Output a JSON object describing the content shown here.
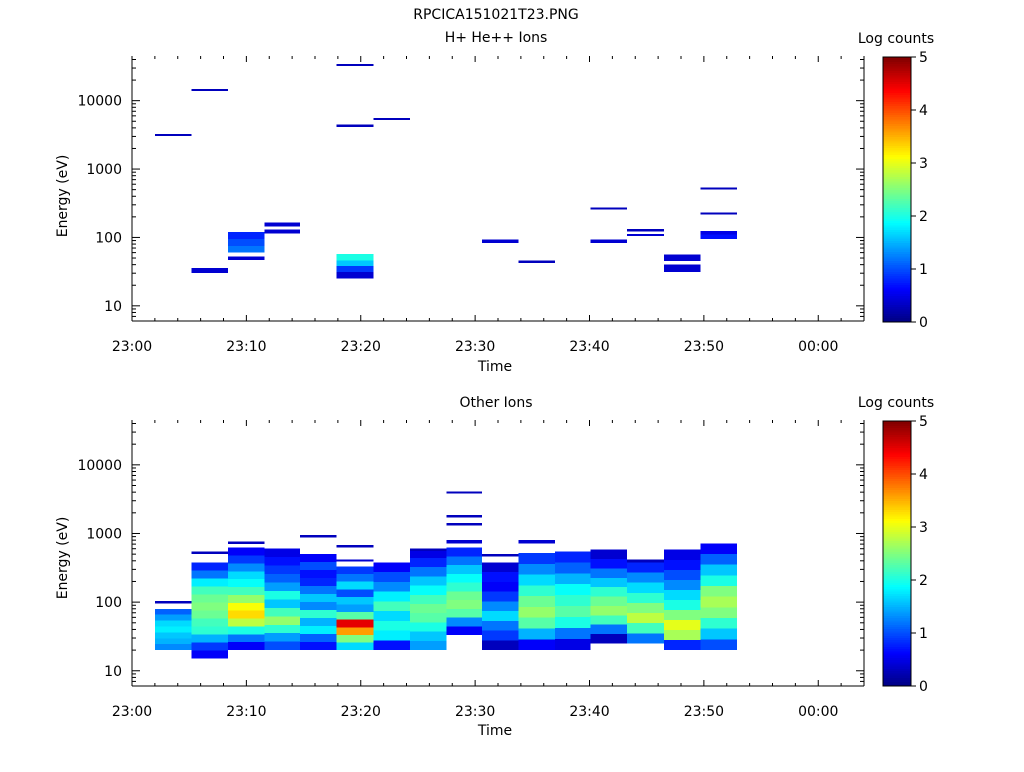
{
  "file_title": "RPCICA151021T23.PNG",
  "colors": {
    "axis": "#000000",
    "background": "#ffffff"
  },
  "chart_data": [
    {
      "type": "heatmap",
      "title": "H+ He++ Ions",
      "xlabel": "Time",
      "ylabel": "Energy (eV)",
      "x_ticks": [
        "23:00",
        "23:10",
        "23:20",
        "23:30",
        "23:40",
        "23:50",
        "00:00"
      ],
      "x_range_minutes": [
        0,
        64
      ],
      "y_ticks": [
        "10",
        "100",
        "1000",
        "10000"
      ],
      "ylim": [
        6,
        45000
      ],
      "yscale": "log",
      "colorbar": {
        "label": "Log counts",
        "ticks": [
          "0",
          "1",
          "2",
          "3",
          "4",
          "5"
        ],
        "range": [
          0,
          5
        ],
        "colormap": "jet"
      },
      "cells": [
        {
          "t0": 2.0,
          "t1": 5.2,
          "e0": 3050,
          "e1": 3250,
          "v": 0.3
        },
        {
          "t0": 5.2,
          "t1": 8.4,
          "e0": 13800,
          "e1": 14800,
          "v": 0.3
        },
        {
          "t0": 5.2,
          "t1": 8.4,
          "e0": 30,
          "e1": 36,
          "v": 0.4
        },
        {
          "t0": 8.4,
          "t1": 11.6,
          "e0": 47,
          "e1": 53,
          "v": 0.4
        },
        {
          "t0": 8.4,
          "t1": 11.6,
          "e0": 60,
          "e1": 75,
          "v": 1.2
        },
        {
          "t0": 8.4,
          "t1": 11.6,
          "e0": 75,
          "e1": 95,
          "v": 1.0
        },
        {
          "t0": 8.4,
          "t1": 11.6,
          "e0": 95,
          "e1": 120,
          "v": 0.8
        },
        {
          "t0": 11.6,
          "t1": 14.7,
          "e0": 115,
          "e1": 130,
          "v": 0.4
        },
        {
          "t0": 11.6,
          "t1": 14.7,
          "e0": 145,
          "e1": 165,
          "v": 0.4
        },
        {
          "t0": 17.9,
          "t1": 21.1,
          "e0": 25,
          "e1": 31,
          "v": 0.4
        },
        {
          "t0": 17.9,
          "t1": 21.1,
          "e0": 31,
          "e1": 38,
          "v": 0.9
        },
        {
          "t0": 17.9,
          "t1": 21.1,
          "e0": 38,
          "e1": 46,
          "v": 1.6
        },
        {
          "t0": 17.9,
          "t1": 21.1,
          "e0": 46,
          "e1": 57,
          "v": 2.0
        },
        {
          "t0": 17.9,
          "t1": 21.1,
          "e0": 4100,
          "e1": 4450,
          "v": 0.3
        },
        {
          "t0": 17.9,
          "t1": 21.1,
          "e0": 32000,
          "e1": 34500,
          "v": 0.3
        },
        {
          "t0": 21.1,
          "t1": 24.3,
          "e0": 5200,
          "e1": 5600,
          "v": 0.3
        },
        {
          "t0": 30.6,
          "t1": 33.8,
          "e0": 83,
          "e1": 93,
          "v": 0.4
        },
        {
          "t0": 33.8,
          "t1": 37.0,
          "e0": 42,
          "e1": 46,
          "v": 0.3
        },
        {
          "t0": 40.1,
          "t1": 43.3,
          "e0": 83,
          "e1": 93,
          "v": 0.4
        },
        {
          "t0": 40.1,
          "t1": 43.3,
          "e0": 255,
          "e1": 275,
          "v": 0.3
        },
        {
          "t0": 43.3,
          "t1": 46.5,
          "e0": 105,
          "e1": 113,
          "v": 0.4
        },
        {
          "t0": 43.3,
          "t1": 46.5,
          "e0": 123,
          "e1": 133,
          "v": 0.3
        },
        {
          "t0": 46.5,
          "t1": 49.7,
          "e0": 31,
          "e1": 40,
          "v": 0.4
        },
        {
          "t0": 46.5,
          "t1": 49.7,
          "e0": 45,
          "e1": 56,
          "v": 0.4
        },
        {
          "t0": 49.7,
          "t1": 52.9,
          "e0": 95,
          "e1": 110,
          "v": 0.7
        },
        {
          "t0": 49.7,
          "t1": 52.9,
          "e0": 110,
          "e1": 125,
          "v": 0.5
        },
        {
          "t0": 49.7,
          "t1": 52.9,
          "e0": 215,
          "e1": 232,
          "v": 0.3
        },
        {
          "t0": 49.7,
          "t1": 52.9,
          "e0": 500,
          "e1": 540,
          "v": 0.3
        }
      ]
    },
    {
      "type": "heatmap",
      "title": "Other Ions",
      "xlabel": "Time",
      "ylabel": "Energy (eV)",
      "x_ticks": [
        "23:00",
        "23:10",
        "23:20",
        "23:30",
        "23:40",
        "23:50",
        "00:00"
      ],
      "x_range_minutes": [
        0,
        64
      ],
      "y_ticks": [
        "10",
        "100",
        "1000",
        "10000"
      ],
      "ylim": [
        6,
        45000
      ],
      "yscale": "log",
      "colorbar": {
        "label": "Log counts",
        "ticks": [
          "0",
          "1",
          "2",
          "3",
          "4",
          "5"
        ],
        "range": [
          0,
          5
        ],
        "colormap": "jet"
      },
      "columns": [
        {
          "t0": 2.0,
          "t1": 5.2,
          "e_min": 20,
          "e_max": 80,
          "values": [
            1.3,
            1.5,
            1.6,
            1.8,
            1.7,
            1.4,
            1.1
          ],
          "lines": [
            {
              "e0": 96,
              "e1": 104,
              "v": 0.3
            }
          ]
        },
        {
          "t0": 5.2,
          "t1": 8.4,
          "e_min": 15,
          "e_max": 380,
          "values": [
            0.6,
            0.9,
            1.5,
            2.1,
            2.2,
            2.4,
            2.5,
            2.4,
            2.2,
            1.8,
            1.2,
            0.8
          ],
          "lines": [
            {
              "e0": 505,
              "e1": 545,
              "v": 0.3
            }
          ]
        },
        {
          "t0": 8.4,
          "t1": 11.6,
          "e_min": 20,
          "e_max": 620,
          "values": [
            0.6,
            1.2,
            2.0,
            2.8,
            3.3,
            3.1,
            2.6,
            2.2,
            1.9,
            1.7,
            1.3,
            0.9,
            0.6
          ],
          "lines": [
            {
              "e0": 700,
              "e1": 760,
              "v": 0.3
            }
          ]
        },
        {
          "t0": 11.6,
          "t1": 14.7,
          "e_min": 20,
          "e_max": 600,
          "values": [
            1.0,
            1.4,
            2.1,
            2.6,
            2.2,
            1.6,
            2.0,
            1.4,
            1.1,
            0.9,
            0.7,
            0.5
          ]
        },
        {
          "t0": 14.7,
          "t1": 17.9,
          "e_min": 20,
          "e_max": 500,
          "values": [
            0.7,
            1.1,
            1.8,
            1.5,
            2.1,
            1.3,
            1.6,
            1.2,
            0.8,
            0.7,
            1.0,
            0.6
          ],
          "lines": [
            {
              "e0": 880,
              "e1": 950,
              "v": 0.3
            }
          ]
        },
        {
          "t0": 17.9,
          "t1": 21.1,
          "e_min": 20,
          "e_max": 330,
          "values": [
            1.7,
            2.5,
            3.6,
            4.5,
            2.3,
            1.4,
            1.6,
            1.0,
            1.7,
            1.2,
            0.9
          ],
          "lines": [
            {
              "e0": 390,
              "e1": 420,
              "v": 0.4
            },
            {
              "e0": 630,
              "e1": 680,
              "v": 0.3
            }
          ]
        },
        {
          "t0": 21.1,
          "t1": 24.3,
          "e_min": 20,
          "e_max": 380,
          "values": [
            0.7,
            1.8,
            2.0,
            1.7,
            2.2,
            1.8,
            1.3,
            1.0,
            0.6
          ]
        },
        {
          "t0": 24.3,
          "t1": 27.5,
          "e_min": 20,
          "e_max": 600,
          "values": [
            1.4,
            1.6,
            2.0,
            2.3,
            2.4,
            2.2,
            1.9,
            1.6,
            1.2,
            0.8,
            0.5
          ],
          "lines": [
            {
              "e0": 560,
              "e1": 600,
              "v": 0.3
            }
          ]
        },
        {
          "t0": 27.5,
          "t1": 30.6,
          "e_min": 33,
          "e_max": 620,
          "values": [
            0.6,
            1.3,
            2.3,
            2.5,
            2.4,
            2.1,
            1.9,
            1.6,
            1.2,
            0.8
          ],
          "lines": [
            {
              "e0": 720,
              "e1": 800,
              "v": 0.4
            },
            {
              "e0": 1300,
              "e1": 1420,
              "v": 0.3
            },
            {
              "e0": 1700,
              "e1": 1850,
              "v": 0.3
            },
            {
              "e0": 3800,
              "e1": 4100,
              "v": 0.3
            }
          ]
        },
        {
          "t0": 30.6,
          "t1": 33.8,
          "e_min": 20,
          "e_max": 380,
          "values": [
            0.3,
            0.9,
            1.2,
            1.7,
            1.3,
            0.9,
            0.6,
            0.7,
            0.4
          ],
          "lines": [
            {
              "e0": 460,
              "e1": 500,
              "v": 0.3
            }
          ]
        },
        {
          "t0": 33.8,
          "t1": 37.0,
          "e_min": 20,
          "e_max": 520,
          "values": [
            0.6,
            1.5,
            2.3,
            2.6,
            2.4,
            2.1,
            1.7,
            1.3,
            0.9
          ],
          "lines": [
            {
              "e0": 720,
              "e1": 800,
              "v": 0.4
            }
          ]
        },
        {
          "t0": 37.0,
          "t1": 40.1,
          "e_min": 20,
          "e_max": 550,
          "values": [
            0.5,
            1.2,
            2.0,
            2.3,
            2.1,
            1.9,
            1.5,
            1.1,
            0.8
          ]
        },
        {
          "t0": 40.1,
          "t1": 43.3,
          "e_min": 25,
          "e_max": 580,
          "values": [
            0.3,
            1.2,
            2.2,
            2.6,
            2.4,
            2.1,
            1.6,
            1.2,
            0.7,
            0.4
          ]
        },
        {
          "t0": 43.3,
          "t1": 46.5,
          "e_min": 25,
          "e_max": 380,
          "values": [
            1.2,
            2.2,
            2.8,
            2.5,
            2.1,
            1.7,
            1.3,
            0.8
          ],
          "lines": [
            {
              "e0": 380,
              "e1": 420,
              "v": 0.3
            }
          ]
        },
        {
          "t0": 46.5,
          "t1": 49.7,
          "e_min": 20,
          "e_max": 580,
          "values": [
            0.8,
            2.7,
            3.0,
            2.5,
            2.0,
            1.7,
            1.3,
            1.0,
            0.7,
            0.5
          ]
        },
        {
          "t0": 49.7,
          "t1": 52.9,
          "e_min": 20,
          "e_max": 720,
          "values": [
            1.0,
            1.6,
            2.1,
            2.5,
            2.7,
            2.5,
            2.0,
            1.6,
            1.1,
            0.6
          ]
        }
      ]
    }
  ]
}
